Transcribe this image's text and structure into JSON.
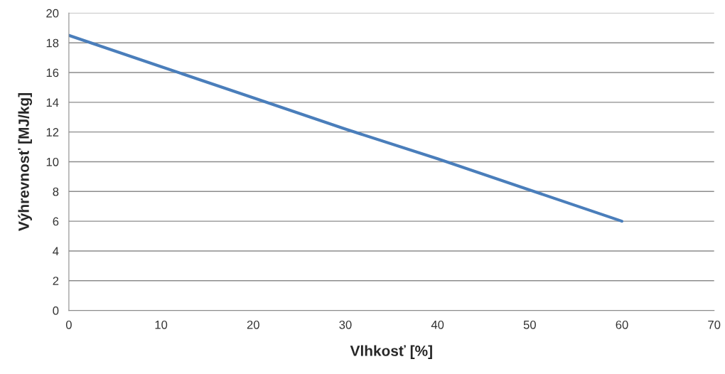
{
  "chart_data": {
    "type": "line",
    "xlabel": "Vlhkosť [%]",
    "ylabel": "Výhrevnosť [MJ/kg]",
    "x": [
      0,
      10,
      20,
      30,
      40,
      50,
      60
    ],
    "series": [
      {
        "color": "#4a7ebb",
        "values": [
          18.5,
          16.4,
          14.3,
          12.2,
          10.2,
          8.1,
          6.0
        ]
      }
    ],
    "xlim": [
      0,
      70
    ],
    "xticks": [
      0,
      10,
      20,
      30,
      40,
      50,
      60,
      70
    ],
    "ylim": [
      0,
      20
    ],
    "yticks": [
      0,
      2,
      4,
      6,
      8,
      10,
      12,
      14,
      16,
      18,
      20
    ],
    "grid": "y"
  }
}
